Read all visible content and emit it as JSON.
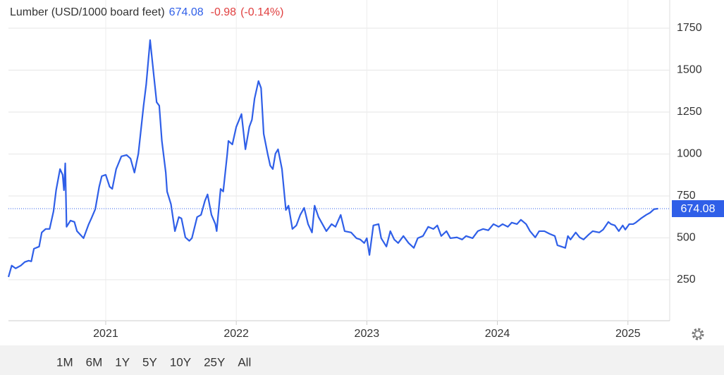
{
  "chart_data": {
    "type": "line",
    "title": "Lumber (USD/1000 board feet)",
    "last_value": 674.08,
    "change": -0.98,
    "change_percent_label": "(-0.14%)",
    "x": [
      2020.255,
      2020.28,
      2020.31,
      2020.35,
      2020.38,
      2020.41,
      2020.43,
      2020.45,
      2020.49,
      2020.51,
      2020.54,
      2020.57,
      2020.6,
      2020.62,
      2020.65,
      2020.67,
      2020.68,
      2020.69,
      2020.7,
      2020.73,
      2020.76,
      2020.78,
      2020.83,
      2020.87,
      2020.89,
      2020.92,
      2020.95,
      2020.97,
      2021.0,
      2021.03,
      2021.05,
      2021.08,
      2021.12,
      2021.16,
      2021.19,
      2021.22,
      2021.25,
      2021.29,
      2021.31,
      2021.34,
      2021.37,
      2021.39,
      2021.41,
      2021.43,
      2021.46,
      2021.47,
      2021.5,
      2021.53,
      2021.56,
      2021.58,
      2021.61,
      2021.64,
      2021.66,
      2021.7,
      2021.73,
      2021.76,
      2021.78,
      2021.81,
      2021.84,
      2021.85,
      2021.88,
      2021.9,
      2021.93,
      2021.94,
      2021.97,
      2022.0,
      2022.04,
      2022.07,
      2022.1,
      2022.12,
      2022.14,
      2022.17,
      2022.19,
      2022.21,
      2022.24,
      2022.26,
      2022.28,
      2022.3,
      2022.32,
      2022.35,
      2022.38,
      2022.4,
      2022.43,
      2022.46,
      2022.49,
      2022.52,
      2022.55,
      2022.58,
      2022.6,
      2022.63,
      2022.66,
      2022.69,
      2022.73,
      2022.76,
      2022.8,
      2022.83,
      2022.88,
      2022.92,
      2022.95,
      2022.98,
      2023.0,
      2023.02,
      2023.05,
      2023.09,
      2023.11,
      2023.15,
      2023.18,
      2023.21,
      2023.24,
      2023.28,
      2023.32,
      2023.36,
      2023.39,
      2023.43,
      2023.47,
      2023.51,
      2023.54,
      2023.57,
      2023.61,
      2023.64,
      2023.69,
      2023.73,
      2023.76,
      2023.81,
      2023.85,
      2023.89,
      2023.93,
      2023.97,
      2024.01,
      2024.04,
      2024.08,
      2024.11,
      2024.15,
      2024.18,
      2024.22,
      2024.25,
      2024.29,
      2024.32,
      2024.36,
      2024.4,
      2024.44,
      2024.46,
      2024.49,
      2024.52,
      2024.54,
      2024.56,
      2024.6,
      2024.63,
      2024.66,
      2024.7,
      2024.73,
      2024.78,
      2024.81,
      2024.85,
      2024.87,
      2024.9,
      2024.93,
      2024.96,
      2024.98,
      2025.01,
      2025.04,
      2025.06,
      2025.1,
      2025.14,
      2025.17,
      2025.2,
      2025.23
    ],
    "series": [
      {
        "name": "Lumber",
        "color": "#2f5fe8",
        "values": [
          267,
          335,
          318,
          335,
          356,
          364,
          360,
          435,
          448,
          532,
          553,
          553,
          658,
          784,
          910,
          876,
          784,
          944,
          566,
          603,
          595,
          540,
          498,
          582,
          616,
          671,
          805,
          868,
          876,
          805,
          792,
          910,
          986,
          994,
          973,
          889,
          1002,
          1288,
          1414,
          1679,
          1456,
          1309,
          1288,
          1078,
          889,
          776,
          700,
          540,
          624,
          616,
          503,
          482,
          498,
          624,
          637,
          721,
          759,
          637,
          582,
          540,
          792,
          776,
          994,
          1078,
          1057,
          1162,
          1238,
          1028,
          1162,
          1204,
          1330,
          1435,
          1393,
          1120,
          1002,
          931,
          910,
          1002,
          1028,
          910,
          666,
          692,
          553,
          574,
          637,
          679,
          582,
          532,
          692,
          624,
          582,
          540,
          582,
          566,
          637,
          540,
          532,
          498,
          490,
          469,
          498,
          398,
          574,
          582,
          498,
          448,
          540,
          490,
          469,
          511,
          469,
          440,
          498,
          511,
          566,
          553,
          574,
          511,
          540,
          498,
          503,
          490,
          511,
          498,
          540,
          553,
          545,
          582,
          566,
          582,
          566,
          591,
          582,
          608,
          582,
          540,
          503,
          540,
          540,
          524,
          511,
          456,
          448,
          440,
          511,
          490,
          532,
          503,
          490,
          520,
          540,
          532,
          549,
          595,
          582,
          574,
          540,
          574,
          549,
          582,
          582,
          591,
          616,
          637,
          650,
          671,
          674.08
        ]
      }
    ],
    "xlim": [
      2020.255,
      2025.32
    ],
    "xticks": [
      2021,
      2022,
      2023,
      2024,
      2025
    ],
    "ylim": [
      6,
      1918
    ],
    "yticks": [
      250,
      500,
      750,
      1000,
      1250,
      1500,
      1750
    ],
    "grid": true,
    "range_buttons": [
      "1M",
      "6M",
      "1Y",
      "5Y",
      "10Y",
      "25Y",
      "All"
    ],
    "selected_range": "5Y"
  }
}
